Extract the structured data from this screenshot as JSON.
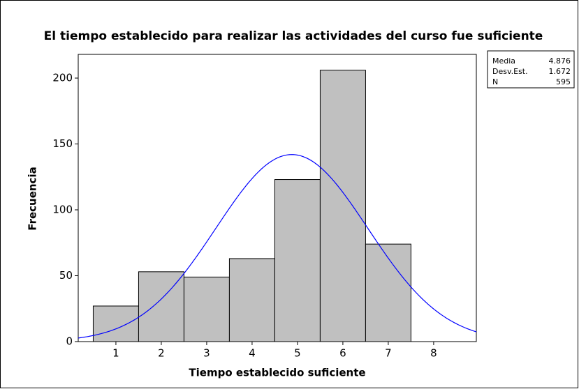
{
  "chart_data": {
    "type": "histogram",
    "title": "El tiempo establecido para realizar las actividades del curso fue suficiente",
    "x_label": "Tiempo establecido suficiente",
    "y_label": "Frecuencia",
    "bins": [
      0.5,
      1.5,
      2.5,
      3.5,
      4.5,
      5.5,
      6.5,
      7.5
    ],
    "values": [
      27,
      53,
      49,
      63,
      123,
      206,
      74
    ],
    "color": "#c0c0c0",
    "curve_color": "#0000ff",
    "xlim": [
      0.17,
      8.94
    ],
    "xticks": [
      1,
      2,
      3,
      4,
      5,
      6,
      7,
      8
    ],
    "ylim": [
      0,
      218
    ],
    "yticks": [
      0,
      50,
      100,
      150,
      200
    ],
    "grid": false,
    "stats": [
      {
        "label": "Media",
        "value": 4.876
      },
      {
        "label": "Desv.Est.",
        "value": 1.672
      },
      {
        "label": "N",
        "value": 595
      }
    ]
  }
}
